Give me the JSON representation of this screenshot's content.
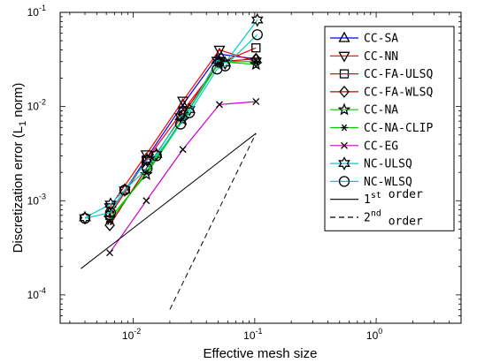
{
  "chart_data": {
    "type": "line",
    "xlabel": "Effective mesh size",
    "ylabel": "Discretization error (L",
    "ylabel_sub": "1",
    "ylabel_suffix": " norm)",
    "x_scale": "log",
    "y_scale": "log",
    "xlim": [
      0.0025,
      5
    ],
    "ylim": [
      5e-05,
      0.1
    ],
    "x_ticks": [
      {
        "value": 0.01,
        "base": "10",
        "exp": "-2"
      },
      {
        "value": 0.1,
        "base": "10",
        "exp": "-1"
      },
      {
        "value": 1,
        "base": "10",
        "exp": "0"
      }
    ],
    "y_ticks": [
      {
        "value": 0.0001,
        "base": "10",
        "exp": "-4"
      },
      {
        "value": 0.001,
        "base": "10",
        "exp": "-3"
      },
      {
        "value": 0.01,
        "base": "10",
        "exp": "-2"
      },
      {
        "value": 0.1,
        "base": "10",
        "exp": "-1"
      }
    ],
    "grid": false,
    "legend_position": "top-right",
    "series": [
      {
        "name": "CC-SA",
        "color": "#0000ff",
        "marker": "triangle-up",
        "dash": "solid",
        "x": [
          0.0064,
          0.0128,
          0.0256,
          0.0512,
          0.1024
        ],
        "y": [
          0.00075,
          0.0028,
          0.0105,
          0.036,
          0.032
        ]
      },
      {
        "name": "CC-NN",
        "color": "#ff0000",
        "marker": "triangle-down",
        "dash": "solid",
        "x": [
          0.0064,
          0.0128,
          0.0256,
          0.0512,
          0.1024
        ],
        "y": [
          0.00085,
          0.0031,
          0.0115,
          0.04,
          0.03
        ]
      },
      {
        "name": "CC-FA-ULSQ",
        "color": "#ff0000",
        "marker": "square",
        "dash": "solid",
        "x": [
          0.0064,
          0.0128,
          0.0256,
          0.0512,
          0.1024
        ],
        "y": [
          0.0007,
          0.0027,
          0.009,
          0.029,
          0.042
        ]
      },
      {
        "name": "CC-FA-WLSQ",
        "color": "#cc0000",
        "marker": "diamond",
        "dash": "solid",
        "x": [
          0.0064,
          0.0128,
          0.0256,
          0.0512,
          0.1024
        ],
        "y": [
          0.00055,
          0.0022,
          0.0082,
          0.03,
          0.032
        ]
      },
      {
        "name": "CC-NA",
        "color": "#00cc00",
        "marker": "pentagram",
        "dash": "solid",
        "x": [
          0.0064,
          0.0128,
          0.0256,
          0.0512,
          0.1024
        ],
        "y": [
          0.00065,
          0.0019,
          0.0072,
          0.03,
          0.028
        ]
      },
      {
        "name": "CC-NA-CLIP",
        "color": "#00cc00",
        "marker": "asterisk",
        "dash": "solid",
        "x": [
          0.0064,
          0.0128,
          0.0256,
          0.0512,
          0.1024
        ],
        "y": [
          0.0006,
          0.002,
          0.0075,
          0.03,
          0.03
        ]
      },
      {
        "name": "CC-EG",
        "color": "#cc00cc",
        "marker": "x",
        "dash": "solid",
        "x": [
          0.0064,
          0.0128,
          0.0256,
          0.0512,
          0.1024
        ],
        "y": [
          0.00028,
          0.001,
          0.0035,
          0.0105,
          0.0113
        ]
      },
      {
        "name": "NC-ULSQ",
        "color": "#00cccc",
        "marker": "hexagram",
        "dash": "solid",
        "x": [
          0.004,
          0.0065,
          0.0085,
          0.013,
          0.0155,
          0.0245,
          0.029,
          0.049,
          0.057,
          0.105
        ],
        "y": [
          0.00066,
          0.00092,
          0.0013,
          0.0027,
          0.0031,
          0.0078,
          0.0093,
          0.031,
          0.029,
          0.083
        ]
      },
      {
        "name": "NC-WLSQ",
        "color": "#00cccc",
        "marker": "circle",
        "dash": "solid",
        "x": [
          0.004,
          0.0065,
          0.0085,
          0.013,
          0.0155,
          0.0245,
          0.029,
          0.049,
          0.057,
          0.105
        ],
        "y": [
          0.00065,
          0.00075,
          0.0013,
          0.0022,
          0.003,
          0.0065,
          0.0086,
          0.025,
          0.027,
          0.058
        ]
      },
      {
        "name": "1",
        "name_sup": "st",
        "name_suffix": " order",
        "color": "#000000",
        "marker": "none",
        "dash": "solid",
        "x": [
          0.0037,
          0.1024
        ],
        "y": [
          0.00019,
          0.0052
        ]
      },
      {
        "name": "2",
        "name_sup": "nd",
        "name_suffix": " order",
        "color": "#000000",
        "marker": "none",
        "dash": "dashed",
        "x": [
          0.02,
          0.1024
        ],
        "y": [
          7e-05,
          0.0052
        ]
      }
    ]
  }
}
